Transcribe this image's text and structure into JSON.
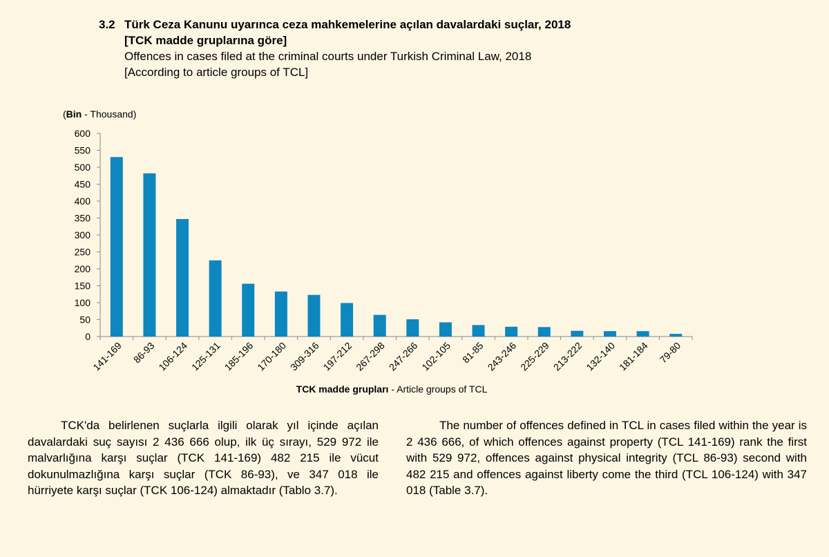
{
  "heading": {
    "number": "3.2",
    "title_tr_line1": "Türk Ceza Kanunu uyarınca ceza mahkemelerine açılan davalardaki suçlar, 2018",
    "title_tr_line2": "[TCK madde gruplarına göre]",
    "title_en_line1": "Offences in cases filed at the criminal courts under Turkish Criminal Law, 2018",
    "title_en_line2": "[According to article groups of TCL]"
  },
  "chart_data": {
    "type": "bar",
    "unit_bold": "Bin",
    "unit_rest": " - Thousand)",
    "unit_open": "(",
    "xlabel_bold": "TCK madde grupları",
    "xlabel_rest": " - Article groups of TCL",
    "categories": [
      "141-169",
      "86-93",
      "106-124",
      "125-131",
      "185-196",
      "170-180",
      "309-316",
      "197-212",
      "267-298",
      "247-266",
      "102-105",
      "81-85",
      "243-246",
      "225-229",
      "213-222",
      "132-140",
      "181-184",
      "79-80"
    ],
    "values": [
      530,
      482,
      347,
      225,
      156,
      133,
      123,
      99,
      64,
      51,
      42,
      34,
      29,
      28,
      17,
      16,
      16,
      8
    ],
    "ylim": [
      0,
      600
    ],
    "yticks": [
      0,
      50,
      100,
      150,
      200,
      250,
      300,
      350,
      400,
      450,
      500,
      550,
      600
    ],
    "bar_color": "#0e87bf",
    "grid": false,
    "legend": "none"
  },
  "text": {
    "tr": "TCK'da belirlenen suçlarla ilgili olarak yıl içinde açılan davalardaki suç sayısı 2 436 666 olup, ilk üç sırayı, 529 972 ile malvarlığına karşı suçlar (TCK 141-169) 482 215 ile vücut dokunulmazlığına karşı suçlar (TCK 86-93),  ve 347 018 ile hürriyete karşı suçlar (TCK 106-124) almaktadır (Tablo 3.7).",
    "en": "The number of offences defined in TCL in cases filed within the year is 2 436 666, of which offences against property  (TCL 141-169) rank the first with 529 972, offences against physical integrity (TCL 86-93) second with 482 215 and offences against liberty come the third (TCL 106-124) with 347 018 (Table 3.7)."
  }
}
